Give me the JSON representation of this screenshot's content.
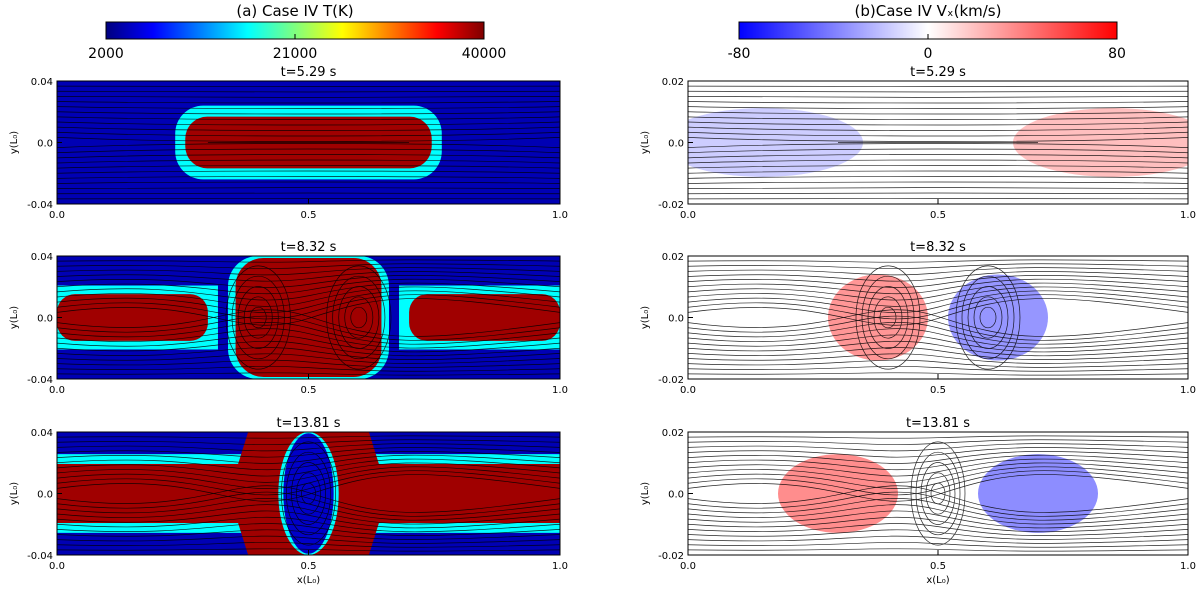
{
  "chart_data": {
    "type": "heatmap",
    "columns": [
      {
        "id": "temperature",
        "title": "(a) Case IV T(K)",
        "colorbar": {
          "ticks": [
            "2000",
            "21000",
            "40000"
          ],
          "stops": [
            "#00007f",
            "#0000ff",
            "#007fff",
            "#00ffff",
            "#7fff7f",
            "#ffff00",
            "#ff7f00",
            "#ff0000",
            "#7f0000"
          ]
        },
        "ylabel": "y(L₀)",
        "y_ticks": [
          "0.04",
          "0.0",
          "-0.04"
        ],
        "ylim": [
          -0.04,
          0.04
        ]
      },
      {
        "id": "velocity",
        "title": "(b)Case IV  Vₓ(km/s)",
        "colorbar": {
          "ticks": [
            "-80",
            "0",
            "80"
          ],
          "stops": [
            "#0000ff",
            "#ffffff",
            "#ff0000"
          ]
        },
        "ylabel": "y(L₀)",
        "y_ticks": [
          "0.02",
          "0.0",
          "-0.02"
        ],
        "ylim": [
          -0.02,
          0.02
        ]
      }
    ],
    "rows": [
      {
        "time": "t=5.29 s"
      },
      {
        "time": "t=8.32 s"
      },
      {
        "time": "t=13.81 s"
      }
    ],
    "x_ticks": [
      "0.0",
      "0.5",
      "1.0"
    ],
    "xlim": [
      0,
      1
    ],
    "xlabel": "x(L₀)"
  }
}
